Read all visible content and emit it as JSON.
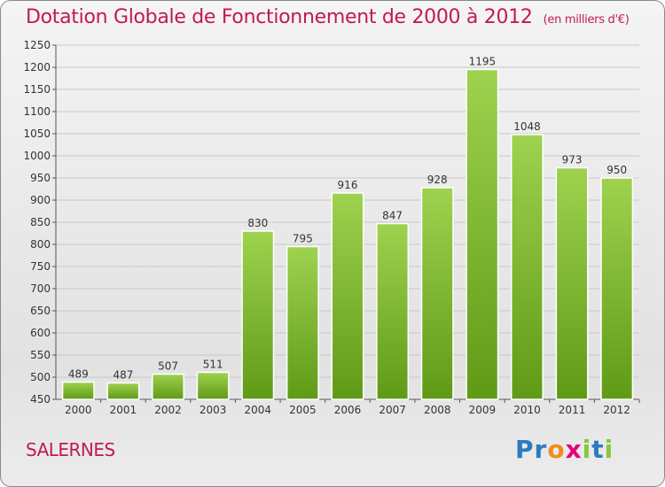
{
  "page": {
    "title": "Dotation Globale de Fonctionnement de 2000 à 2012",
    "unit_note": "(en milliers d'€)",
    "place": "SALERNES",
    "logo_text": "Proxiti",
    "logo_letters": [
      "P",
      "r",
      "o",
      "x",
      "i",
      "t",
      "i"
    ],
    "logo_colors": [
      "#2b7bbf",
      "#2b7bbf",
      "#f28c1e",
      "#e4007c",
      "#8bc53f",
      "#2b7bbf",
      "#8bc53f"
    ]
  },
  "colors": {
    "title": "#c2185b",
    "bar_light": "#9ed24f",
    "bar_dark": "#5f9a16",
    "grid": "#c8c8c8"
  },
  "chart_data": {
    "type": "bar",
    "title": "Dotation Globale de Fonctionnement de 2000 à 2012",
    "subtitle": "(en milliers d'€)",
    "xlabel": "",
    "ylabel": "",
    "categories": [
      "2000",
      "2001",
      "2002",
      "2003",
      "2004",
      "2005",
      "2006",
      "2007",
      "2008",
      "2009",
      "2010",
      "2011",
      "2012"
    ],
    "values": [
      489,
      487,
      507,
      511,
      830,
      795,
      916,
      847,
      928,
      1195,
      1048,
      973,
      950
    ],
    "ylim": [
      450,
      1250
    ],
    "yticks": [
      450,
      500,
      550,
      600,
      650,
      700,
      750,
      800,
      850,
      900,
      950,
      1000,
      1050,
      1100,
      1150,
      1200,
      1250
    ],
    "grid": true,
    "legend": "none"
  }
}
